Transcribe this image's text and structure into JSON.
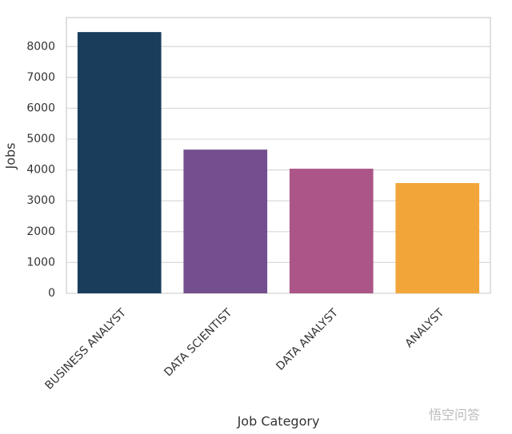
{
  "chart_data": {
    "type": "bar",
    "x_label": "Job Category",
    "y_label": "Jobs",
    "categories": [
      "BUSINESS ANALYST",
      "DATA SCIENTIST",
      "DATA ANALYST",
      "ANALYST"
    ],
    "values": [
      8470,
      4660,
      4040,
      3575
    ],
    "colors": [
      "#1a3d5c",
      "#734f8f",
      "#ac5588",
      "#f2a63a"
    ],
    "ylim": [
      0,
      8940
    ],
    "yticks": [
      0,
      1000,
      2000,
      3000,
      4000,
      5000,
      6000,
      7000,
      8000
    ],
    "grid": true
  },
  "watermark": "悟空问答"
}
